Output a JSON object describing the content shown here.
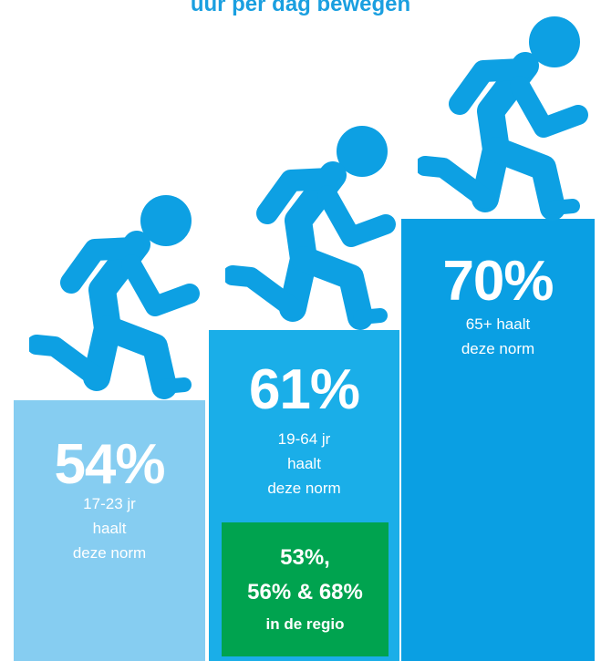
{
  "title": "uur per dag bewegen",
  "colors": {
    "title": "#1a9fe0",
    "step1": "#86cdf1",
    "step2": "#1aaee8",
    "step3": "#0a9fe3",
    "runner": "#0da0e3",
    "region": "#00a34f"
  },
  "steps": [
    {
      "percent": "54%",
      "line1": "17-23 jr",
      "line2": "haalt",
      "line3": "deze norm"
    },
    {
      "percent": "61%",
      "line1": "19-64 jr",
      "line2": "haalt",
      "line3": "deze norm"
    },
    {
      "percent": "70%",
      "line1": "65+ haalt",
      "line2": "deze norm"
    }
  ],
  "region": {
    "line1": "53%,",
    "line2": "56% & 68%",
    "line3": "in de regio"
  },
  "icons": [
    "runner-icon",
    "runner-icon",
    "runner-icon"
  ]
}
